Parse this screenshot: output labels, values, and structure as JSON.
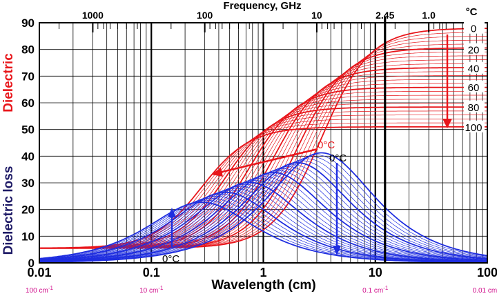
{
  "chart_data": {
    "type": "line",
    "title": "Frequency, GHz",
    "xlabel": "Wavelength (cm)",
    "y_left_label_top": "Dielectric",
    "y_left_label_bottom": "Dielectric loss",
    "x_axis": {
      "scale": "log",
      "range": [
        0.01,
        100
      ],
      "ticks": [
        "0.01",
        "0.1",
        "1",
        "10",
        "100"
      ]
    },
    "y_axis": {
      "range": [
        0,
        90
      ],
      "ticks": [
        "0",
        "10",
        "20",
        "30",
        "40",
        "50",
        "60",
        "70",
        "80",
        "90"
      ]
    },
    "top_axis": {
      "label": "Frequency, GHz",
      "ticks": [
        {
          "label": "1000",
          "wavelength_cm": 0.03
        },
        {
          "label": "100",
          "wavelength_cm": 0.3
        },
        {
          "label": "10",
          "wavelength_cm": 3
        },
        {
          "label": "2.45",
          "wavelength_cm": 12.2
        },
        {
          "label": "1.0",
          "wavelength_cm": 30
        }
      ]
    },
    "wavenumber_ticks": [
      {
        "label": "100 cm",
        "sup": "-1",
        "wavelength_cm": 0.01
      },
      {
        "label": "10 cm",
        "sup": "-1",
        "wavelength_cm": 0.1
      },
      {
        "label": "0.1 cm",
        "sup": "-1",
        "wavelength_cm": 10
      },
      {
        "label": "0.01 cm",
        "sup": "-1",
        "wavelength_cm": 100
      }
    ],
    "temperature_unit": "°C",
    "temperature_labels": [
      {
        "label": "0",
        "value": 88
      },
      {
        "label": "20",
        "value": 80
      },
      {
        "label": "40",
        "value": 73
      },
      {
        "label": "60",
        "value": 66
      },
      {
        "label": "80",
        "value": 58.5
      },
      {
        "label": "100",
        "value": 51
      }
    ],
    "annotations": [
      {
        "text": "0°C",
        "near": "dielectric-constant-arrow"
      },
      {
        "text": "0°C",
        "near": "loss-peak-top"
      },
      {
        "text": "0°C",
        "near": "loss-peak-bottom-left"
      }
    ],
    "model": {
      "eps_inf": 5.5,
      "temperature_range_c": [
        0,
        100
      ],
      "curve_count": 26,
      "static_permittivity": {
        "at_0C": 88,
        "at_100C": 51
      },
      "relaxation_wavelength_cm": {
        "at_0C": 3.3,
        "at_100C": 0.28
      }
    },
    "colors": {
      "dielectric": "#e8161b",
      "loss": "#1f2ee0",
      "grid": "#000000",
      "accent": "#d10f8c",
      "label_dark": "#1e1a66"
    }
  }
}
